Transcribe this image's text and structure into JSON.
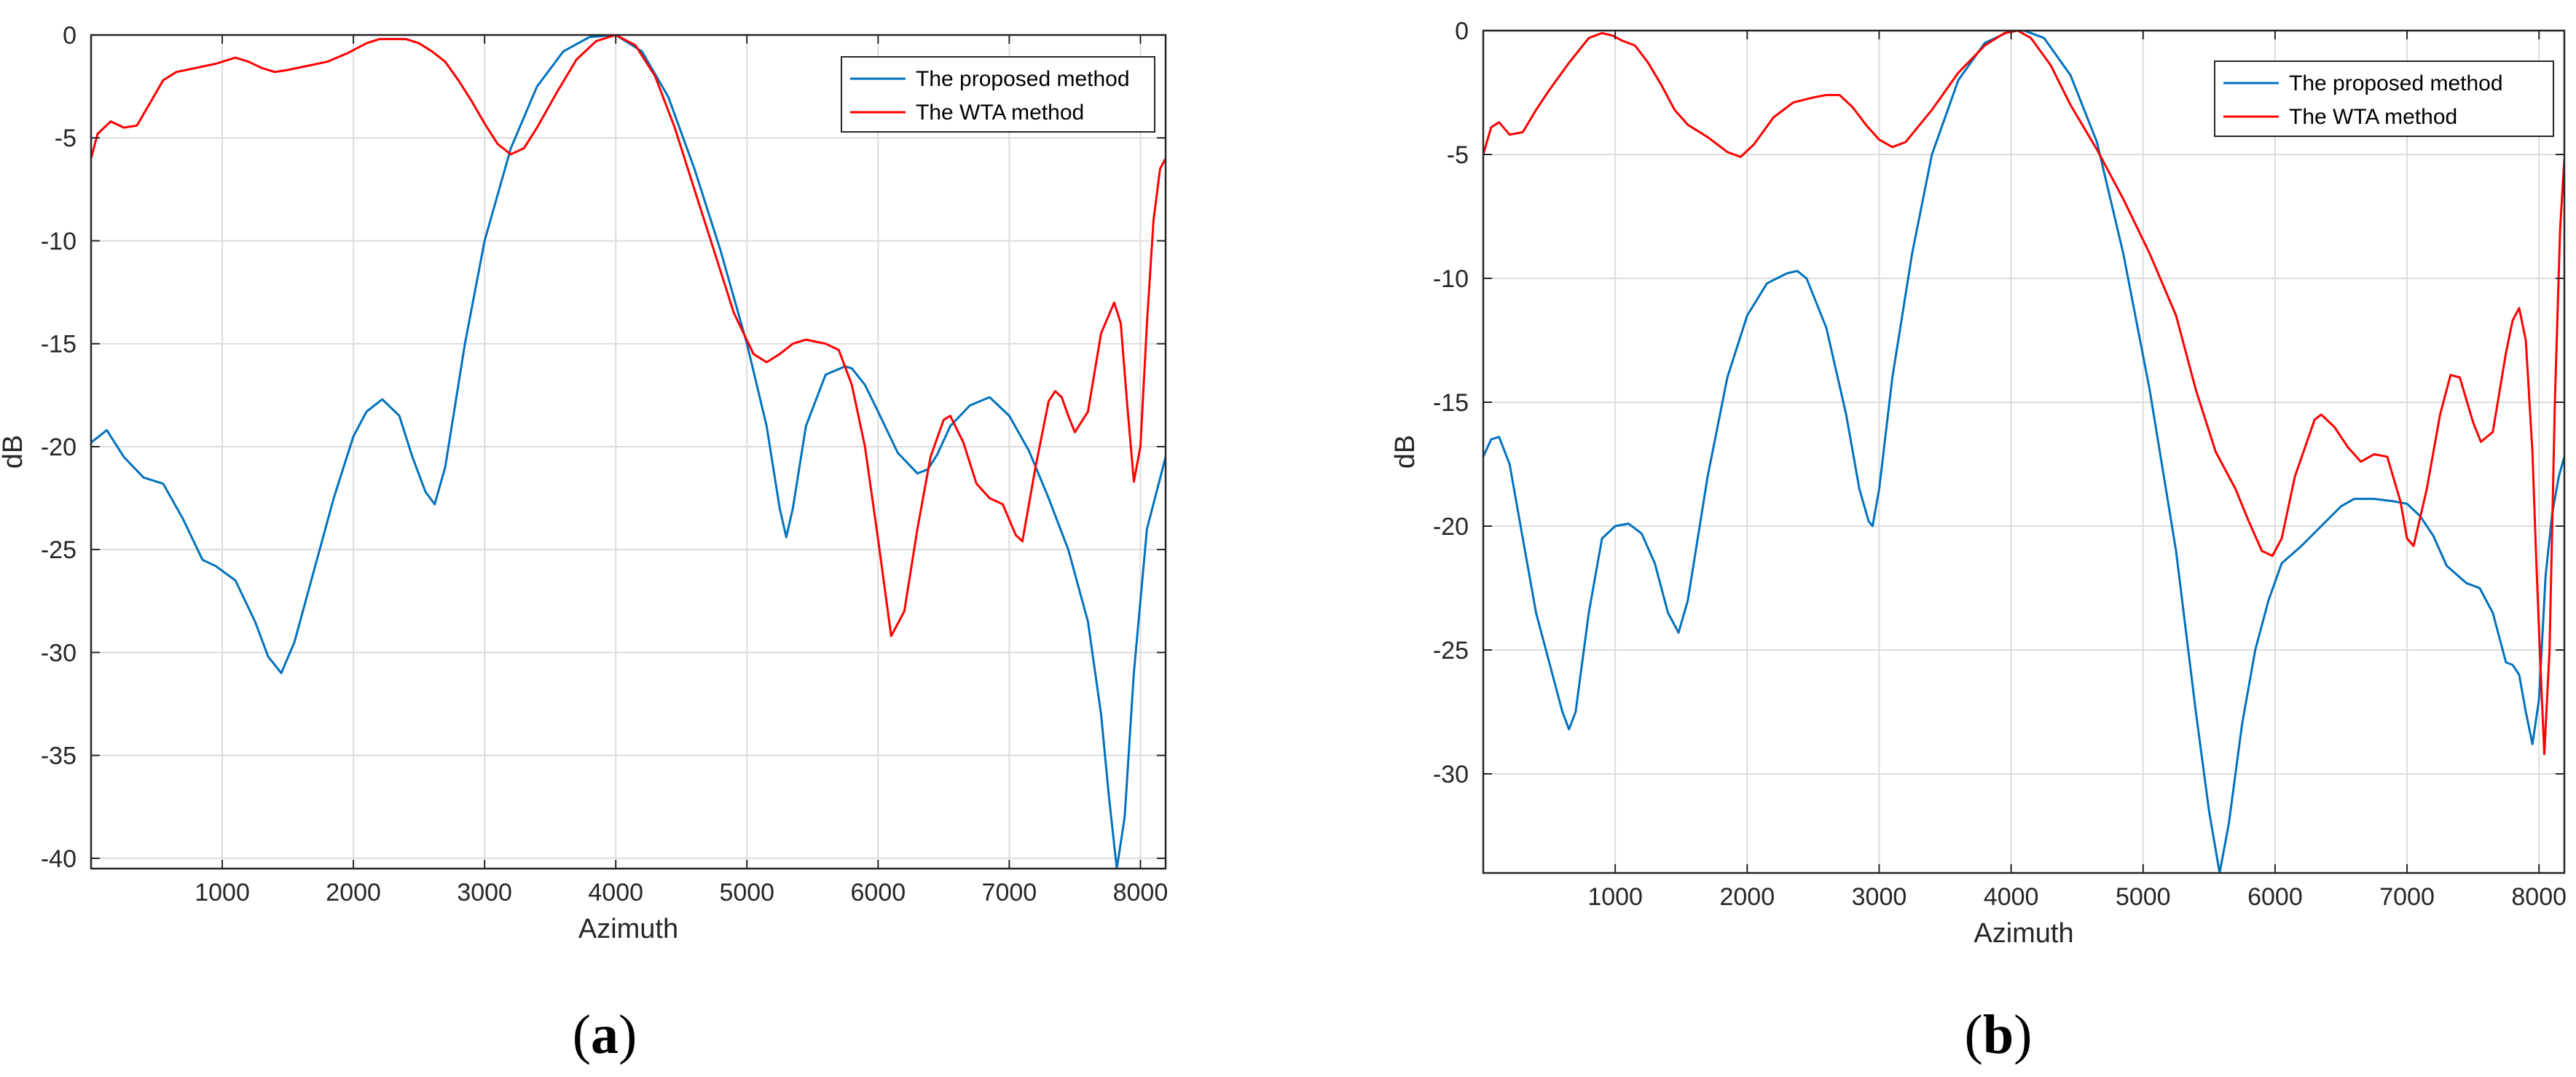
{
  "chart_data": [
    {
      "type": "line",
      "panel": "a",
      "caption": "(a)",
      "xlabel": "Azimuth",
      "ylabel": "dB",
      "xlim": [
        0,
        8192
      ],
      "ylim": [
        -40.5,
        0
      ],
      "xticks": [
        1000,
        2000,
        3000,
        4000,
        5000,
        6000,
        7000,
        8000
      ],
      "yticks": [
        0,
        -5,
        -10,
        -15,
        -20,
        -25,
        -30,
        -35,
        -40
      ],
      "grid": true,
      "legend_position": "top-right",
      "series": [
        {
          "name": "The proposed method",
          "color": "#0072BD",
          "x": [
            0,
            120,
            250,
            400,
            550,
            700,
            850,
            950,
            1100,
            1250,
            1350,
            1450,
            1550,
            1700,
            1850,
            2000,
            2100,
            2220,
            2350,
            2450,
            2550,
            2620,
            2700,
            2850,
            3000,
            3200,
            3400,
            3600,
            3800,
            4000,
            4200,
            4400,
            4600,
            4800,
            5000,
            5150,
            5250,
            5300,
            5350,
            5450,
            5600,
            5750,
            5800,
            5900,
            6000,
            6150,
            6300,
            6380,
            6450,
            6550,
            6700,
            6850,
            7000,
            7150,
            7300,
            7450,
            7600,
            7700,
            7760,
            7820,
            7880,
            7950,
            8050,
            8192
          ],
          "y": [
            -19.8,
            -19.2,
            -20.5,
            -21.5,
            -21.8,
            -23.5,
            -25.5,
            -25.8,
            -26.5,
            -28.5,
            -30.2,
            -31,
            -29.5,
            -26,
            -22.5,
            -19.5,
            -18.3,
            -17.7,
            -18.5,
            -20.5,
            -22.2,
            -22.8,
            -21,
            -15,
            -10,
            -5.5,
            -2.5,
            -0.8,
            -0.1,
            0,
            -0.8,
            -3,
            -6.5,
            -10.5,
            -15,
            -19,
            -23,
            -24.4,
            -23,
            -19,
            -16.5,
            -16.1,
            -16.2,
            -17,
            -18.3,
            -20.3,
            -21.3,
            -21.1,
            -20.4,
            -19,
            -18,
            -17.6,
            -18.5,
            -20.2,
            -22.5,
            -25,
            -28.5,
            -33,
            -37,
            -40.5,
            -38,
            -31,
            -24,
            -20.5
          ]
        },
        {
          "name": "The WTA method",
          "color": "#FF0000",
          "x": [
            0,
            50,
            150,
            250,
            350,
            450,
            550,
            650,
            800,
            950,
            1100,
            1200,
            1300,
            1400,
            1500,
            1650,
            1800,
            1950,
            2100,
            2200,
            2300,
            2400,
            2500,
            2600,
            2700,
            2800,
            2900,
            3000,
            3100,
            3200,
            3300,
            3400,
            3550,
            3700,
            3850,
            4000,
            4150,
            4300,
            4450,
            4600,
            4750,
            4900,
            5050,
            5150,
            5200,
            5250,
            5350,
            5450,
            5600,
            5700,
            5800,
            5900,
            6000,
            6100,
            6200,
            6300,
            6400,
            6500,
            6550,
            6650,
            6750,
            6850,
            6950,
            7050,
            7100,
            7200,
            7300,
            7350,
            7400,
            7450,
            7500,
            7600,
            7700,
            7800,
            7850,
            7900,
            7950,
            8000,
            8050,
            8100,
            8150,
            8192
          ],
          "y": [
            -6,
            -4.8,
            -4.2,
            -4.5,
            -4.4,
            -3.3,
            -2.2,
            -1.8,
            -1.6,
            -1.4,
            -1.1,
            -1.3,
            -1.6,
            -1.8,
            -1.7,
            -1.5,
            -1.3,
            -0.9,
            -0.4,
            -0.2,
            -0.2,
            -0.2,
            -0.4,
            -0.8,
            -1.3,
            -2.2,
            -3.2,
            -4.3,
            -5.3,
            -5.8,
            -5.5,
            -4.5,
            -2.8,
            -1.2,
            -0.3,
            0,
            -0.5,
            -2,
            -4.5,
            -7.5,
            -10.5,
            -13.5,
            -15.5,
            -15.9,
            -15.7,
            -15.5,
            -15,
            -14.8,
            -15,
            -15.3,
            -17,
            -20,
            -24.5,
            -29.2,
            -28,
            -24,
            -20.5,
            -18.7,
            -18.5,
            -19.8,
            -21.8,
            -22.5,
            -22.8,
            -24.3,
            -24.6,
            -21,
            -17.8,
            -17.3,
            -17.6,
            -18.5,
            -19.3,
            -18.3,
            -14.5,
            -13,
            -14,
            -18,
            -21.7,
            -20,
            -14,
            -9,
            -6.5,
            -6
          ]
        }
      ]
    },
    {
      "type": "line",
      "panel": "b",
      "caption": "(b)",
      "xlabel": "Azimuth",
      "ylabel": "dB",
      "xlim": [
        0,
        8192
      ],
      "ylim": [
        -34,
        0
      ],
      "xticks": [
        1000,
        2000,
        3000,
        4000,
        5000,
        6000,
        7000,
        8000
      ],
      "yticks": [
        0,
        -5,
        -10,
        -15,
        -20,
        -25,
        -30
      ],
      "grid": true,
      "legend_position": "top-right",
      "series": [
        {
          "name": "The proposed method",
          "color": "#0072BD",
          "x": [
            0,
            60,
            120,
            200,
            300,
            400,
            500,
            600,
            650,
            700,
            800,
            900,
            1000,
            1100,
            1200,
            1300,
            1400,
            1480,
            1550,
            1700,
            1850,
            2000,
            2150,
            2300,
            2380,
            2450,
            2600,
            2750,
            2850,
            2920,
            2950,
            3000,
            3100,
            3250,
            3400,
            3600,
            3800,
            4000,
            4100,
            4250,
            4450,
            4650,
            4850,
            5050,
            5250,
            5400,
            5500,
            5580,
            5650,
            5750,
            5850,
            5950,
            6050,
            6200,
            6350,
            6500,
            6600,
            6750,
            6900,
            7000,
            7100,
            7200,
            7300,
            7450,
            7550,
            7650,
            7750,
            7800,
            7850,
            7900,
            7950,
            8000,
            8050,
            8100,
            8150,
            8192
          ],
          "y": [
            -17.2,
            -16.5,
            -16.4,
            -17.5,
            -20.5,
            -23.5,
            -25.5,
            -27.5,
            -28.2,
            -27.5,
            -23.5,
            -20.5,
            -20,
            -19.9,
            -20.3,
            -21.5,
            -23.5,
            -24.3,
            -23,
            -18,
            -14,
            -11.5,
            -10.2,
            -9.8,
            -9.7,
            -10,
            -12,
            -15.5,
            -18.5,
            -19.8,
            -20,
            -18.5,
            -14,
            -9,
            -5,
            -2,
            -0.5,
            0,
            0,
            -0.3,
            -1.8,
            -4.5,
            -9,
            -14.5,
            -21,
            -27.5,
            -31.5,
            -34,
            -32,
            -28,
            -25,
            -23,
            -21.5,
            -20.8,
            -20,
            -19.2,
            -18.9,
            -18.9,
            -19,
            -19.1,
            -19.6,
            -20.4,
            -21.6,
            -22.3,
            -22.5,
            -23.5,
            -25.5,
            -25.6,
            -26,
            -27.5,
            -28.8,
            -27,
            -22,
            -19.5,
            -18,
            -17.2
          ]
        },
        {
          "name": "The WTA method",
          "color": "#FF0000",
          "x": [
            0,
            60,
            120,
            200,
            300,
            400,
            500,
            650,
            800,
            900,
            980,
            1050,
            1150,
            1250,
            1350,
            1450,
            1550,
            1700,
            1850,
            1950,
            2050,
            2200,
            2350,
            2500,
            2600,
            2700,
            2800,
            2900,
            3000,
            3100,
            3200,
            3400,
            3600,
            3800,
            3950,
            4050,
            4150,
            4300,
            4450,
            4650,
            4850,
            5050,
            5250,
            5400,
            5550,
            5700,
            5800,
            5900,
            5980,
            6050,
            6150,
            6300,
            6350,
            6450,
            6550,
            6650,
            6750,
            6850,
            6950,
            7000,
            7050,
            7150,
            7250,
            7330,
            7400,
            7500,
            7560,
            7650,
            7750,
            7800,
            7850,
            7900,
            7950,
            7980,
            8010,
            8040,
            8080,
            8120,
            8160,
            8192
          ],
          "y": [
            -5,
            -3.9,
            -3.7,
            -4.2,
            -4.1,
            -3.2,
            -2.4,
            -1.3,
            -0.3,
            -0.1,
            -0.2,
            -0.4,
            -0.6,
            -1.3,
            -2.2,
            -3.2,
            -3.8,
            -4.3,
            -4.9,
            -5.1,
            -4.6,
            -3.5,
            -2.9,
            -2.7,
            -2.6,
            -2.6,
            -3.1,
            -3.8,
            -4.4,
            -4.7,
            -4.5,
            -3.2,
            -1.7,
            -0.6,
            -0.1,
            0,
            -0.3,
            -1.4,
            -3,
            -4.8,
            -6.8,
            -9,
            -11.5,
            -14.5,
            -17,
            -18.5,
            -19.8,
            -21,
            -21.2,
            -20.5,
            -18,
            -15.7,
            -15.5,
            -16,
            -16.8,
            -17.4,
            -17.1,
            -17.2,
            -19,
            -20.5,
            -20.8,
            -18.5,
            -15.5,
            -13.9,
            -14,
            -15.8,
            -16.6,
            -16.2,
            -13,
            -11.7,
            -11.2,
            -12.5,
            -17,
            -21.5,
            -25.5,
            -29.2,
            -25,
            -15,
            -8,
            -5.2
          ]
        }
      ]
    }
  ]
}
